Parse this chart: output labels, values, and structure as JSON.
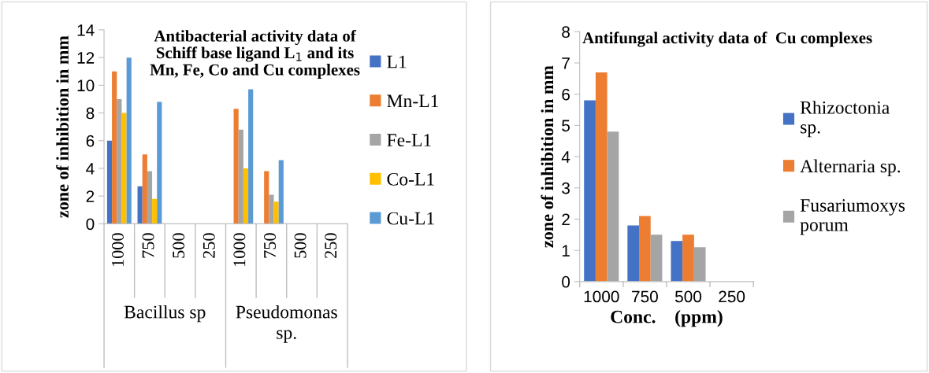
{
  "chart_data": [
    {
      "type": "bar",
      "title": "Antibacterial activity data of Schiff base ligand L$_{1}$ and its Mn, Fe, Co and Cu complexes",
      "ylabel": "zone of inhibition in mm",
      "categories": [
        "1000",
        "750",
        "500",
        "250",
        "1000",
        "750",
        "500",
        "250"
      ],
      "annotations": [
        "Bacillus sp",
        "Pseudomonas sp."
      ],
      "series": [
        {
          "name": "L1",
          "color": "#4472c4",
          "values": [
            6,
            2.7,
            0,
            0,
            0,
            0,
            0,
            0
          ]
        },
        {
          "name": "Mn-L1",
          "color": "#ed7d31",
          "values": [
            11,
            5,
            0,
            0,
            8.3,
            3.8,
            0,
            0
          ]
        },
        {
          "name": "Fe-L1",
          "color": "#a5a5a5",
          "values": [
            9,
            3.8,
            0,
            0,
            6.8,
            2.1,
            0,
            0
          ]
        },
        {
          "name": "Co-L1",
          "color": "#ffc000",
          "values": [
            8,
            1.8,
            0,
            0,
            4,
            1.6,
            0,
            0
          ]
        },
        {
          "name": "Cu-L1",
          "color": "#5b9bd5",
          "values": [
            12,
            8.8,
            0,
            0,
            9.7,
            4.6,
            0,
            0
          ]
        }
      ],
      "ylim": [
        0,
        14
      ],
      "yticks": [
        0,
        2,
        4,
        6,
        8,
        10,
        12,
        14
      ],
      "grid": false,
      "legend": "right"
    },
    {
      "type": "bar",
      "title": "Antifungal activity data of  Cu complexes",
      "ylabel": "zone of inhibition in mm",
      "xlabel": "Conc.    (ppm)",
      "categories": [
        "1000",
        "750",
        "500",
        "250"
      ],
      "series": [
        {
          "name": "Rhizoctonia sp.",
          "color": "#4472c4",
          "values": [
            5.8,
            1.8,
            1.3,
            0
          ]
        },
        {
          "name": "Alternaria sp.",
          "color": "#ed7d31",
          "values": [
            6.7,
            2.1,
            1.5,
            0
          ]
        },
        {
          "name": "Fusariumoxys porum",
          "color": "#a5a5a5",
          "values": [
            4.8,
            1.5,
            1.1,
            0
          ]
        }
      ],
      "ylim": [
        0,
        8
      ],
      "yticks": [
        0,
        1,
        2,
        3,
        4,
        5,
        6,
        7,
        8
      ],
      "grid": false,
      "legend": "right"
    }
  ]
}
